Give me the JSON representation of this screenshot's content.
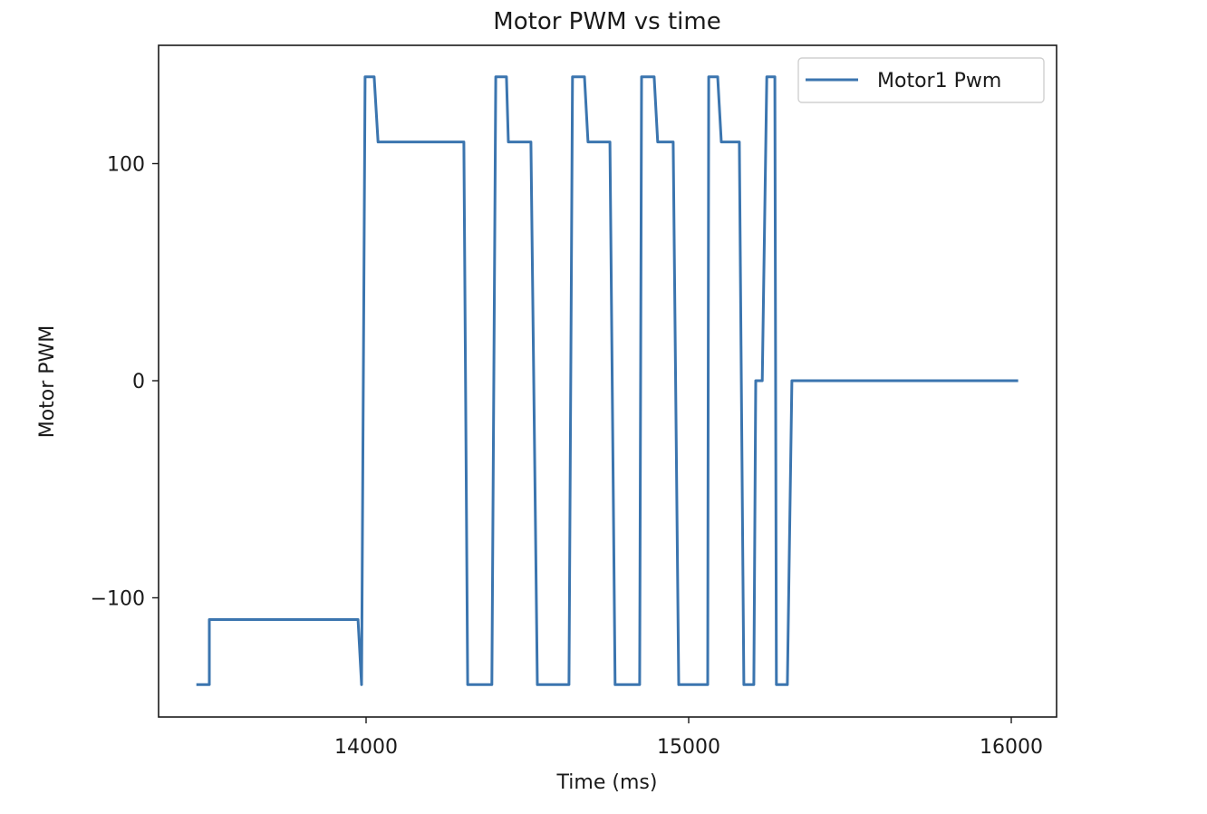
{
  "chart_data": {
    "type": "line",
    "title": "Motor PWM vs time",
    "xlabel": "Time (ms)",
    "ylabel": "Motor PWM",
    "xlim": [
      13400,
      16140
    ],
    "ylim": [
      -155,
      155
    ],
    "xticks": [
      14000,
      15000,
      16000
    ],
    "xtick_labels": [
      "14000",
      "15000",
      "16000"
    ],
    "yticks": [
      -100,
      0,
      100
    ],
    "ytick_labels": [
      "−100",
      "0",
      "100"
    ],
    "grid": false,
    "legend": {
      "position": "upper right",
      "entries": [
        "Motor1 Pwm"
      ]
    },
    "series": [
      {
        "name": "Motor1 Pwm",
        "color": "#3b75af",
        "x": [
          13478,
          13514,
          13514,
          13975,
          13986,
          13997,
          14025,
          14037,
          14303,
          14315,
          14390,
          14402,
          14435,
          14441,
          14511,
          14531,
          14629,
          14640,
          14677,
          14688,
          14756,
          14772,
          14848,
          14854,
          14893,
          14904,
          14952,
          14969,
          15059,
          15062,
          15090,
          15101,
          15157,
          15171,
          15202,
          15208,
          15228,
          15242,
          15267,
          15272,
          15306,
          15320,
          16017
        ],
        "y": [
          -140,
          -140,
          -110,
          -110,
          -140,
          140,
          140,
          110,
          110,
          -140,
          -140,
          140,
          140,
          110,
          110,
          -140,
          -140,
          140,
          140,
          110,
          110,
          -140,
          -140,
          140,
          140,
          110,
          110,
          -140,
          -140,
          140,
          140,
          110,
          110,
          -140,
          -140,
          0,
          0,
          140,
          140,
          -140,
          -140,
          0,
          0
        ]
      }
    ]
  }
}
